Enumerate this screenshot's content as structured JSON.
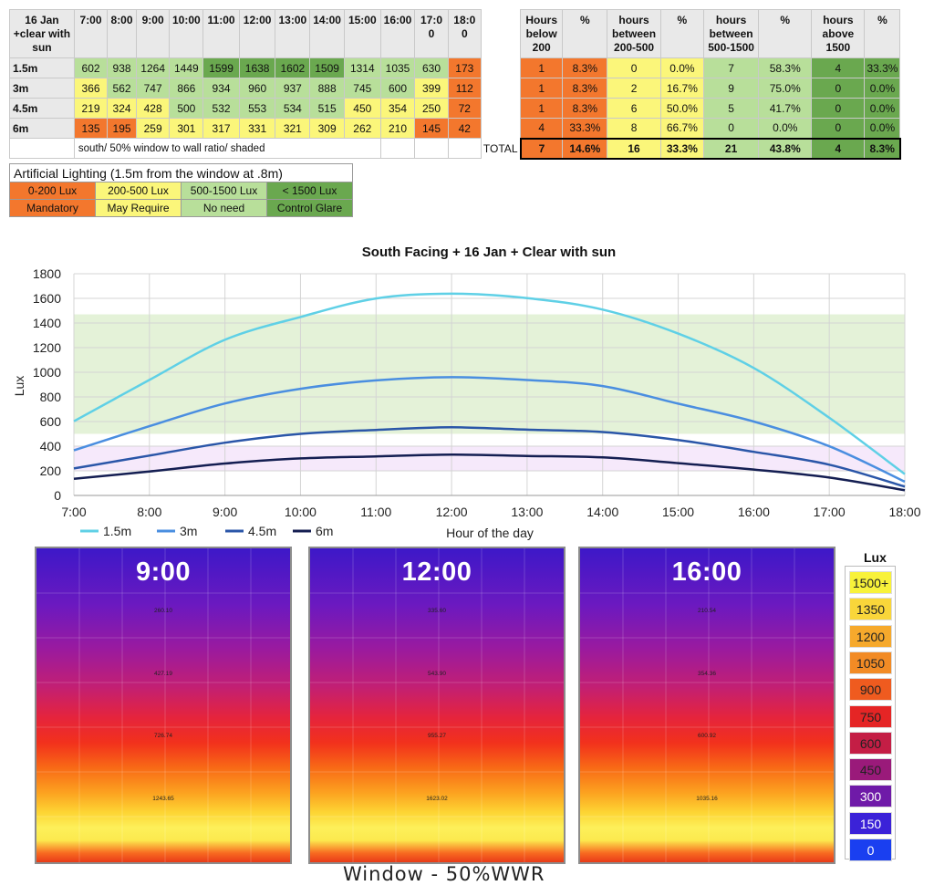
{
  "table": {
    "corner_header": "16 Jan +clear with sun",
    "hour_headers": [
      "7:00",
      "8:00",
      "9:00",
      "10:00",
      "11:00",
      "12:00",
      "13:00",
      "14:00",
      "15:00",
      "16:00",
      "17:0 0",
      "18:0 0"
    ],
    "summary_headers": [
      "Hours below 200",
      "%",
      "hours between 200-500",
      "%",
      "hours between 500-1500",
      "%",
      "hours above 1500",
      "%"
    ],
    "rows": [
      {
        "label": "1.5m",
        "values": [
          "602",
          "938",
          "1264",
          "1449",
          "1599",
          "1638",
          "1602",
          "1509",
          "1314",
          "1035",
          "630",
          "173"
        ],
        "colors": [
          "lg",
          "lg",
          "lg",
          "lg",
          "dg",
          "dg",
          "dg",
          "dg",
          "lg",
          "lg",
          "lg",
          "or"
        ],
        "summary": [
          "1",
          "8.3%",
          "0",
          "0.0%",
          "7",
          "58.3%",
          "4",
          "33.3%"
        ]
      },
      {
        "label": "3m",
        "values": [
          "366",
          "562",
          "747",
          "866",
          "934",
          "960",
          "937",
          "888",
          "745",
          "600",
          "399",
          "112"
        ],
        "colors": [
          "ye",
          "lg",
          "lg",
          "lg",
          "lg",
          "lg",
          "lg",
          "lg",
          "lg",
          "lg",
          "ye",
          "or"
        ],
        "summary": [
          "1",
          "8.3%",
          "2",
          "16.7%",
          "9",
          "75.0%",
          "0",
          "0.0%"
        ]
      },
      {
        "label": "4.5m",
        "values": [
          "219",
          "324",
          "428",
          "500",
          "532",
          "553",
          "534",
          "515",
          "450",
          "354",
          "250",
          "72"
        ],
        "colors": [
          "ye",
          "ye",
          "ye",
          "lg",
          "lg",
          "lg",
          "lg",
          "lg",
          "ye",
          "ye",
          "ye",
          "or"
        ],
        "summary": [
          "1",
          "8.3%",
          "6",
          "50.0%",
          "5",
          "41.7%",
          "0",
          "0.0%"
        ]
      },
      {
        "label": "6m",
        "values": [
          "135",
          "195",
          "259",
          "301",
          "317",
          "331",
          "321",
          "309",
          "262",
          "210",
          "145",
          "42"
        ],
        "colors": [
          "or",
          "or",
          "ye",
          "ye",
          "ye",
          "ye",
          "ye",
          "ye",
          "ye",
          "ye",
          "or",
          "or"
        ],
        "summary": [
          "4",
          "33.3%",
          "8",
          "66.7%",
          "0",
          "0.0%",
          "0",
          "0.0%"
        ]
      }
    ],
    "note": "south/ 50% window to wall ratio/ shaded",
    "total_label": "TOTAL",
    "totals": [
      "7",
      "14.6%",
      "16",
      "33.3%",
      "21",
      "43.8%",
      "4",
      "8.3%"
    ]
  },
  "legend": {
    "title": "Artificial Lighting (1.5m from the window at .8m)",
    "ranges": [
      "0-200 Lux",
      "200-500 Lux",
      "500-1500 Lux",
      "< 1500 Lux"
    ],
    "actions": [
      "Mandatory",
      "May Require",
      "No need",
      "Control Glare"
    ]
  },
  "colors": {
    "orange": "#f3772d",
    "yellow": "#fbf67a",
    "light_green": "#b8df9a",
    "mid_green": "#93cc77",
    "dark_green": "#6aa84f",
    "series": [
      "#5fd0e6",
      "#4a8ee0",
      "#2a56a8",
      "#141e52"
    ],
    "comfort_band": "#e4f2d8",
    "low_band": "#f6e9fb"
  },
  "chart_data": {
    "type": "line",
    "title": "South Facing + 16 Jan + Clear with sun",
    "xlabel": "Hour of the day",
    "ylabel": "Lux",
    "x": [
      "7:00",
      "8:00",
      "9:00",
      "10:00",
      "11:00",
      "12:00",
      "13:00",
      "14:00",
      "15:00",
      "16:00",
      "17:00",
      "18:00"
    ],
    "ylim": [
      0,
      1800
    ],
    "yticks": [
      "0",
      "200",
      "400",
      "600",
      "800",
      "1000",
      "1200",
      "1400",
      "1600",
      "1800"
    ],
    "grid": true,
    "legend_position": "bottom-left",
    "bands": [
      [
        500,
        1470
      ],
      [
        200,
        400
      ]
    ],
    "series": [
      {
        "name": "1.5m",
        "values": [
          602,
          938,
          1264,
          1449,
          1599,
          1638,
          1602,
          1509,
          1314,
          1035,
          630,
          173
        ]
      },
      {
        "name": "3m",
        "values": [
          366,
          562,
          747,
          866,
          934,
          960,
          937,
          888,
          745,
          600,
          399,
          112
        ]
      },
      {
        "name": "4.5m",
        "values": [
          219,
          324,
          428,
          500,
          532,
          553,
          534,
          515,
          450,
          354,
          250,
          72
        ]
      },
      {
        "name": "6m",
        "values": [
          135,
          195,
          259,
          301,
          317,
          331,
          321,
          309,
          262,
          210,
          145,
          42
        ]
      }
    ]
  },
  "heatmaps": [
    {
      "title": "9:00",
      "values": [
        "260.10",
        "427.19",
        "726.74",
        "1243.65"
      ]
    },
    {
      "title": "12:00",
      "values": [
        "335.60",
        "543.90",
        "955.27",
        "1623.02"
      ]
    },
    {
      "title": "16:00",
      "values": [
        "210.54",
        "354.36",
        "600.92",
        "1035.16"
      ]
    }
  ],
  "window_caption": "Window - 50%WWR",
  "lux_scale": {
    "title": "Lux",
    "labels": [
      "1500+",
      "1350",
      "1200",
      "1050",
      "900",
      "750",
      "600",
      "450",
      "300",
      "150",
      "0"
    ],
    "colors": [
      "#f8f23a",
      "#f9d63a",
      "#f6a92c",
      "#f28b25",
      "#ef5b1f",
      "#e52525",
      "#c41e45",
      "#9a1a7a",
      "#6f1aa8",
      "#3b22d8",
      "#1a3ff0"
    ]
  }
}
